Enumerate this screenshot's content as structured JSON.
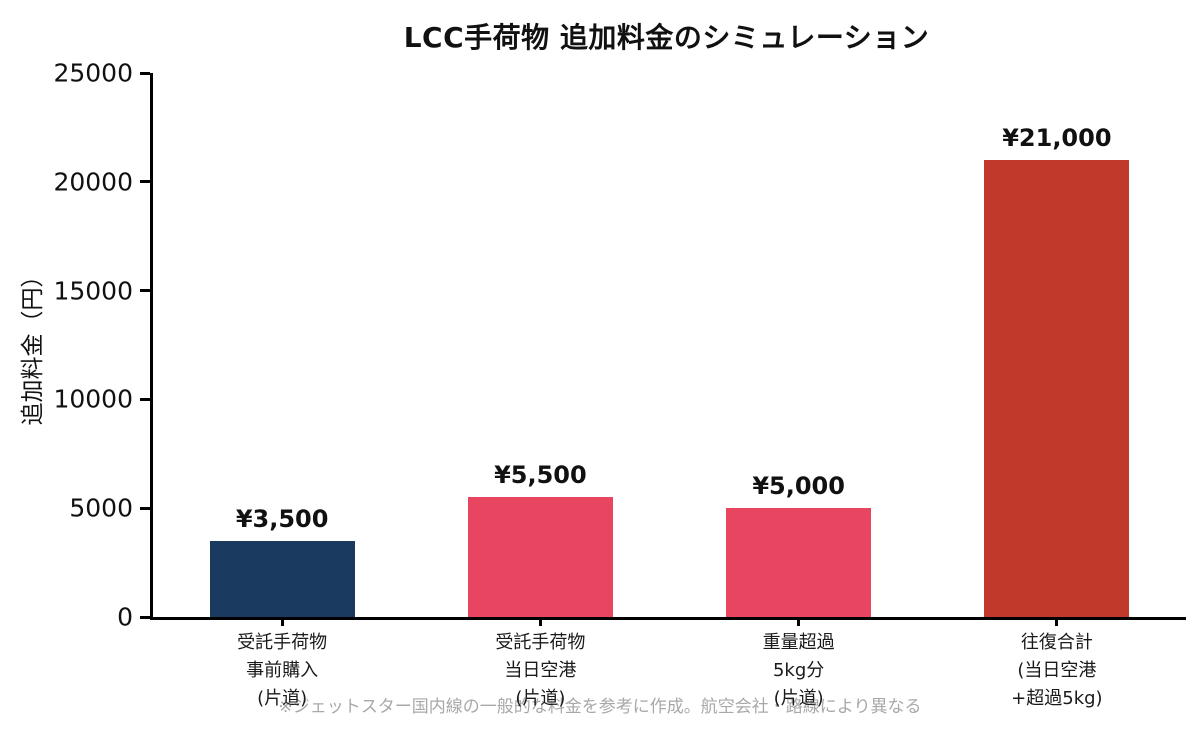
{
  "chart_data": {
    "type": "bar",
    "title": "LCC手荷物 追加料金のシミュレーション",
    "ylabel": "追加料金（円）",
    "xlabel": "",
    "ylim": [
      0,
      25000
    ],
    "yticks": [
      0,
      5000,
      10000,
      15000,
      20000,
      25000
    ],
    "categories": [
      [
        "受託手荷物",
        "事前購入",
        "(片道)"
      ],
      [
        "受託手荷物",
        "当日空港",
        "(片道)"
      ],
      [
        "重量超過",
        "5kg分",
        "(片道)"
      ],
      [
        "往復合計",
        "(当日空港",
        "+超過5kg)"
      ]
    ],
    "values": [
      3500,
      5500,
      5000,
      21000
    ],
    "value_labels": [
      "¥3,500",
      "¥5,500",
      "¥5,000",
      "¥21,000"
    ],
    "bar_colors": [
      "#1b3a5f",
      "#e84560",
      "#e84560",
      "#c0392b"
    ],
    "grid": false,
    "legend": null,
    "note": "※ジェットスター国内線の一般的な料金を参考に作成。航空会社・路線により異なる"
  }
}
